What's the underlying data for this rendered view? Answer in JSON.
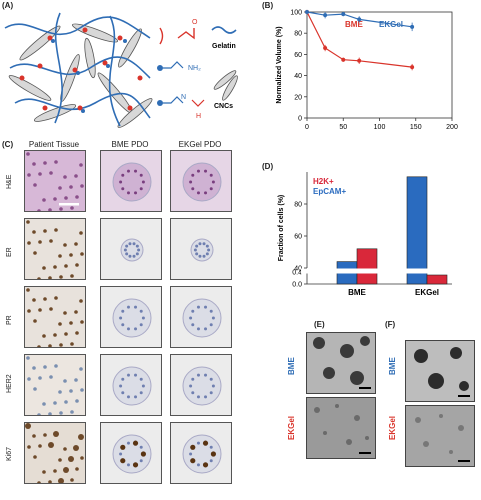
{
  "panels": {
    "A": "(A)",
    "B": "(B)",
    "C": "(C)",
    "D": "(D)",
    "E": "(E)",
    "F": "(F)"
  },
  "legend_A": {
    "gelatin": "Gelatin",
    "cncs": "CNCs"
  },
  "chemistry_A": {
    "aldehyde_o": "O",
    "amine": "NH₂",
    "imine_n": "N",
    "imine_h": "H"
  },
  "panel_C": {
    "columns": [
      "Patient Tissue",
      "BME PDO",
      "EKGel PDO"
    ],
    "rows": [
      "H&E",
      "ER",
      "PR",
      "HER2",
      "Ki67"
    ]
  },
  "panel_E": {
    "top": "BME",
    "bottom": "EKGel"
  },
  "panel_F": {
    "top": "BME",
    "bottom": "EKGel"
  },
  "colors": {
    "bme": "#d9342b",
    "ekgel": "#2f6db5",
    "bme_bar": "#d9283a",
    "ekgel_bar": "#2a6bbf"
  },
  "chart_data": [
    {
      "id": "B",
      "type": "scatter",
      "ylabel": "Normalized Volume (%)",
      "xlim": [
        0,
        200
      ],
      "ylim": [
        0,
        100
      ],
      "xticks": [
        "0",
        "50",
        "100",
        "150",
        "200"
      ],
      "yticks": [
        "0",
        "20",
        "40",
        "60",
        "80",
        "100"
      ],
      "series": [
        {
          "name": "BME",
          "x": [
            0,
            25,
            50,
            72,
            145
          ],
          "y": [
            100,
            66,
            55,
            54,
            48
          ],
          "err": [
            2,
            3,
            2,
            3,
            3
          ]
        },
        {
          "name": "EKGel",
          "x": [
            0,
            25,
            50,
            72,
            145
          ],
          "y": [
            100,
            97,
            98,
            93,
            86
          ],
          "err": [
            2,
            3,
            2,
            3,
            4
          ]
        }
      ]
    },
    {
      "id": "D",
      "type": "bar",
      "ylabel": "Fraction of cells (%)",
      "categories": [
        "BME",
        "EKGel"
      ],
      "yticks": [
        "0.0",
        "0.4",
        "40",
        "60",
        "80"
      ],
      "broken_axis": true,
      "series": [
        {
          "name": "EpCAM+",
          "values": [
            44,
            97
          ]
        },
        {
          "name": "H2K+",
          "values": [
            52,
            0.3
          ]
        }
      ]
    }
  ]
}
